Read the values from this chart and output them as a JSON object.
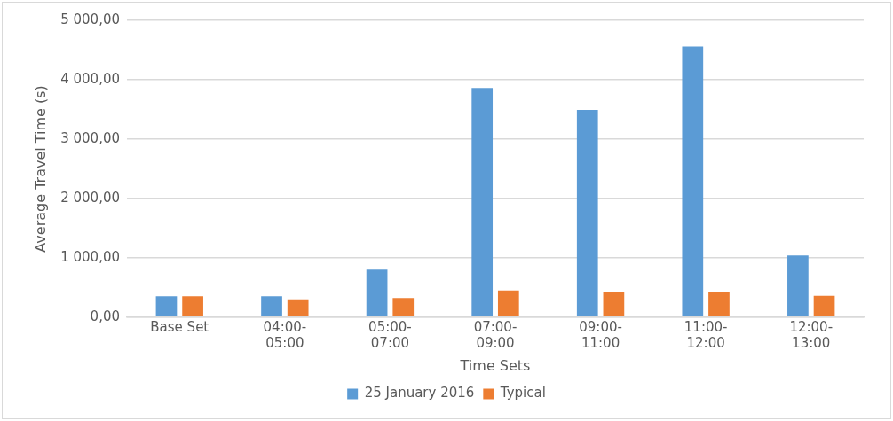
{
  "chart_data": {
    "type": "bar",
    "xlabel": "Time Sets",
    "ylabel": "Average Travel Time (s)",
    "categories": [
      "Base Set",
      "04:00-05:00",
      "05:00-07:00",
      "07:00-09:00",
      "09:00-11:00",
      "11:00-12:00",
      "12:00-13:00"
    ],
    "series": [
      {
        "name": "25 January 2016",
        "color": "#5b9bd5",
        "values": [
          350,
          350,
          800,
          3860,
          3490,
          4560,
          1040
        ]
      },
      {
        "name": "Typical",
        "color": "#ed7d31",
        "values": [
          350,
          300,
          320,
          450,
          420,
          420,
          360
        ]
      }
    ],
    "ylim": [
      0,
      5000
    ],
    "yticks": [
      {
        "value": 0,
        "label": "0,00"
      },
      {
        "value": 1000,
        "label": "1 000,00"
      },
      {
        "value": 2000,
        "label": "2 000,00"
      },
      {
        "value": 3000,
        "label": "3 000,00"
      },
      {
        "value": 4000,
        "label": "4 000,00"
      },
      {
        "value": 5000,
        "label": "5 000,00"
      }
    ],
    "grid": "y",
    "legend": "bottom"
  }
}
